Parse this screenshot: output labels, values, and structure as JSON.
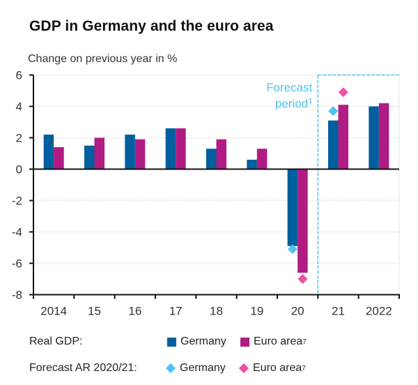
{
  "chart_data": {
    "type": "bar",
    "title": "GDP in Germany and the euro area",
    "subtitle": "Change on previous year in %",
    "ylabel": "Change on previous year in %",
    "xlabel": "",
    "ylim": [
      -8,
      6
    ],
    "yticks": [
      6,
      4,
      2,
      0,
      -2,
      -4,
      -6,
      -8
    ],
    "grid": true,
    "categories": [
      "2014",
      "15",
      "16",
      "17",
      "18",
      "19",
      "20",
      "21",
      "2022"
    ],
    "series": [
      {
        "name": "Germany",
        "group": "Real GDP",
        "kind": "bar",
        "color": "#005f9e",
        "values": [
          2.2,
          1.5,
          2.2,
          2.6,
          1.3,
          0.6,
          -4.9,
          3.1,
          4.0
        ]
      },
      {
        "name": "Euro area",
        "group": "Real GDP",
        "kind": "bar",
        "color": "#b01c84",
        "values": [
          1.4,
          2.0,
          1.9,
          2.6,
          1.9,
          1.3,
          -6.6,
          4.1,
          4.2
        ]
      },
      {
        "name": "Germany",
        "group": "Forecast AR 2020/21",
        "kind": "marker",
        "color": "#4fc3f0",
        "values": [
          null,
          null,
          null,
          null,
          null,
          null,
          -5.1,
          3.7,
          null
        ]
      },
      {
        "name": "Euro area",
        "group": "Forecast AR 2020/21",
        "kind": "marker",
        "color": "#f050a0",
        "values": [
          null,
          null,
          null,
          null,
          null,
          null,
          -7.0,
          4.9,
          null
        ]
      }
    ],
    "forecast_region": {
      "from_category": "21",
      "label_line1": "Forecast",
      "label_line2": "period",
      "label_sup": "1",
      "color": "#4fc3f0"
    },
    "legend": {
      "placement": "bottom",
      "rows": [
        {
          "label": "Real GDP:",
          "items": [
            {
              "marker": "square",
              "color": "#005f9e",
              "text": "Germany",
              "sup": ""
            },
            {
              "marker": "square",
              "color": "#b01c84",
              "text": "Euro area",
              "sup": "7"
            }
          ]
        },
        {
          "label": "Forecast AR 2020/21:",
          "items": [
            {
              "marker": "diamond",
              "color": "#4fc3f0",
              "text": "Germany",
              "sup": ""
            },
            {
              "marker": "diamond",
              "color": "#f050a0",
              "text": "Euro area",
              "sup": "7"
            }
          ]
        }
      ]
    }
  }
}
